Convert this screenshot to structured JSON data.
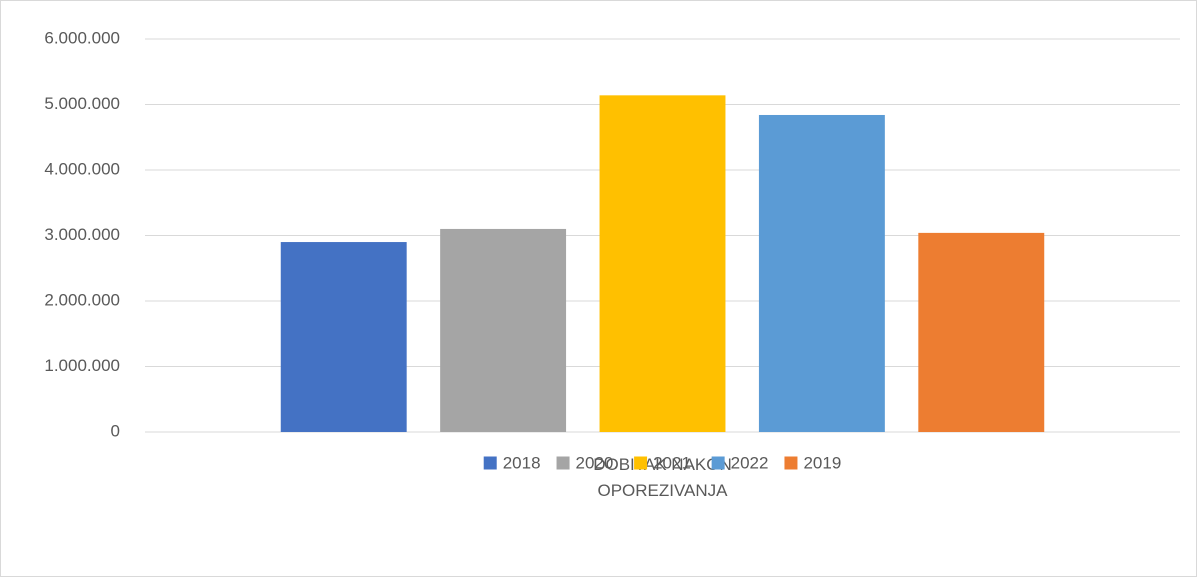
{
  "chart_data": {
    "type": "bar",
    "categories": [
      "DOBITAK NAKON OPOREZIVANJA"
    ],
    "series": [
      {
        "name": "2018",
        "color": "#4472c4",
        "values": [
          2900000
        ]
      },
      {
        "name": "2020.",
        "color": "#a5a5a5",
        "values": [
          3100000
        ]
      },
      {
        "name": "2021.",
        "color": "#ffc000",
        "values": [
          5140000
        ]
      },
      {
        "name": "2022",
        "color": "#5b9bd5",
        "values": [
          4840000
        ]
      },
      {
        "name": "2019",
        "color": "#ed7d31",
        "values": [
          3040000
        ]
      }
    ],
    "ylim": [
      0,
      6000000
    ],
    "yticks": [
      0,
      {
        "value": 1000000,
        "label": "1.000.000"
      },
      {
        "value": 2000000,
        "label": "2.000.000"
      },
      {
        "value": 3000000,
        "label": "3.000.000"
      },
      {
        "value": 4000000,
        "label": "4.000.000"
      },
      {
        "value": 5000000,
        "label": "5.000.000"
      },
      {
        "value": 6000000,
        "label": "6.000.000"
      }
    ],
    "grid": true,
    "legend": "bottom"
  }
}
